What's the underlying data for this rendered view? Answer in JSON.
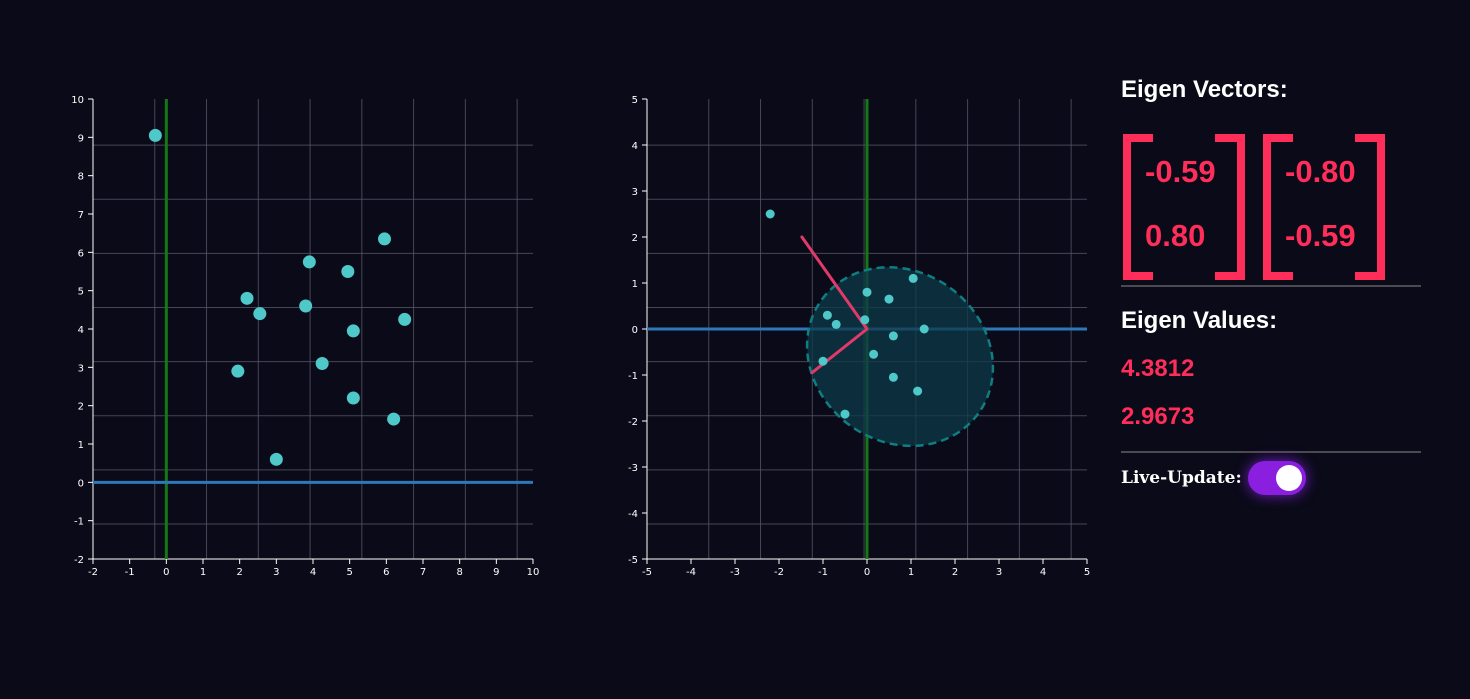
{
  "colors": {
    "background": "#0a0a18",
    "point": "#4ec8c8",
    "x_axis_line": "#2f78b8",
    "y_axis_line": "#147814",
    "grid": "#555566",
    "eigen_vector": "#e03a6a",
    "ellipse_stroke": "#0e7e80",
    "ellipse_fill": "#0e3a48",
    "accent": "#ff2d5a",
    "toggle_on": "#8a1fe0"
  },
  "chart_data": [
    {
      "type": "scatter",
      "xlim": [
        -2,
        10
      ],
      "ylim": [
        -2,
        10
      ],
      "x_ticks": [
        "-2",
        "-1",
        "0",
        "1",
        "2",
        "3",
        "4",
        "5",
        "6",
        "7",
        "8",
        "9",
        "10"
      ],
      "y_ticks": [
        "-2",
        "-1",
        "0",
        "1",
        "2",
        "3",
        "4",
        "5",
        "6",
        "7",
        "8",
        "9",
        "10"
      ],
      "grid": true,
      "points": [
        {
          "x": -0.3,
          "y": 9.05
        },
        {
          "x": 2.2,
          "y": 4.8
        },
        {
          "x": 2.55,
          "y": 4.4
        },
        {
          "x": 1.95,
          "y": 2.9
        },
        {
          "x": 3.0,
          "y": 0.6
        },
        {
          "x": 3.9,
          "y": 5.75
        },
        {
          "x": 3.8,
          "y": 4.6
        },
        {
          "x": 4.25,
          "y": 3.1
        },
        {
          "x": 4.95,
          "y": 5.5
        },
        {
          "x": 5.1,
          "y": 3.95
        },
        {
          "x": 5.1,
          "y": 2.2
        },
        {
          "x": 5.95,
          "y": 6.35
        },
        {
          "x": 6.5,
          "y": 4.25
        },
        {
          "x": 6.2,
          "y": 1.65
        }
      ]
    },
    {
      "type": "scatter",
      "xlim": [
        -5,
        5
      ],
      "ylim": [
        -5,
        5
      ],
      "x_ticks": [
        "-5",
        "-4",
        "-3",
        "-2",
        "-1",
        "0",
        "1",
        "2",
        "3",
        "4",
        "5"
      ],
      "y_ticks": [
        "-5",
        "-4",
        "-3",
        "-2",
        "-1",
        "0",
        "1",
        "2",
        "3",
        "4",
        "5"
      ],
      "grid": true,
      "points": [
        {
          "x": -2.2,
          "y": 2.5
        },
        {
          "x": -0.9,
          "y": 0.3
        },
        {
          "x": -0.7,
          "y": 0.1
        },
        {
          "x": 0.0,
          "y": 0.8
        },
        {
          "x": -0.05,
          "y": 0.2
        },
        {
          "x": 0.5,
          "y": 0.65
        },
        {
          "x": 1.05,
          "y": 1.1
        },
        {
          "x": 0.6,
          "y": -0.15
        },
        {
          "x": 1.3,
          "y": 0.0
        },
        {
          "x": -1.0,
          "y": -0.7
        },
        {
          "x": 0.15,
          "y": -0.55
        },
        {
          "x": 0.6,
          "y": -1.05
        },
        {
          "x": 1.15,
          "y": -1.35
        },
        {
          "x": -0.5,
          "y": -1.85
        }
      ],
      "eigen_vectors": [
        [
          -1.48,
          2.0
        ],
        [
          -1.25,
          -0.95
        ]
      ],
      "ellipse": {
        "center": [
          0.75,
          -0.6
        ],
        "rx": 2.2,
        "ry": 1.85,
        "rotation_deg": 36
      }
    }
  ],
  "panel": {
    "eigen_vectors_title": "Eigen Vectors:",
    "matrices": [
      {
        "top": "-0.59",
        "bottom": "0.80"
      },
      {
        "top": "-0.80",
        "bottom": "-0.59"
      }
    ],
    "eigen_values_title": "Eigen Values:",
    "eigen_values": [
      "4.3812",
      "2.9673"
    ],
    "live_update_label": "Live-Update:",
    "live_update_on": true
  }
}
